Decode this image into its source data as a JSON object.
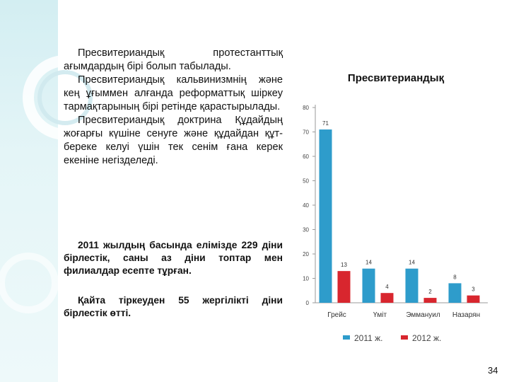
{
  "text": {
    "p1_lines": [
      "Пресвитериандық протестанттық ағымдардың бірі болып табылады.",
      "Пресвитериандық кальвинизмнің және кең ұғыммен алғанда реформаттық шіркеу тармақтарының бірі ретінде қарастырылады.",
      "Пресвитериандық доктрина Құдайдың жоғарғы күшіне сенуге және құдайдан құт-береке келуі үшін тек сенім ғана керек екеніне негізделеді."
    ],
    "p2": "2011 жылдың басында елімізде 229 діни бірлестік, саны аз діни топтар мен филиалдар есепте тұрған.",
    "p3": "Қайта тіркеуден 55 жергілікті діни бірлестік өтті."
  },
  "page_number": "34",
  "chart_data": {
    "type": "bar",
    "title": "Пресвитериандық",
    "categories": [
      "Грейс",
      "Үміт",
      "Эммануил",
      "Назарян"
    ],
    "series": [
      {
        "name": "2011 ж.",
        "values": [
          71,
          14,
          14,
          8
        ],
        "color": "#2e9ccb"
      },
      {
        "name": "2012 ж.",
        "values": [
          13,
          4,
          2,
          3
        ],
        "color": "#d8262e"
      }
    ],
    "ylim": [
      0,
      80
    ],
    "yticks": [
      "0",
      "10",
      "20",
      "30",
      "40",
      "50",
      "60",
      "70",
      "80"
    ],
    "grid": false,
    "legend_position": "bottom"
  }
}
